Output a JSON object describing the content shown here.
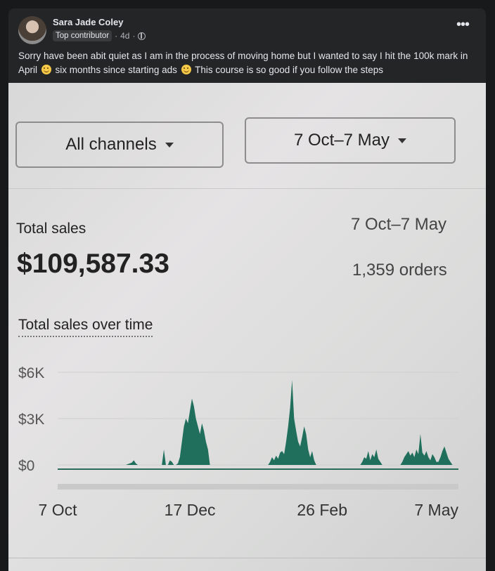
{
  "post": {
    "author": "Sara Jade Coley",
    "badge": "Top contributor",
    "time": "4d",
    "separator": "·",
    "more_icon": "more-icon",
    "text_parts": [
      "Sorry have been abit quiet as I am in the process of moving home but I wanted to say I hit the 100k mark in April",
      "six months since starting ads",
      "This course is so good if you follow the steps"
    ]
  },
  "photo": {
    "channel_filter": "All channels",
    "date_filter": "7 Oct–7 May",
    "total_sales_label": "Total sales",
    "date_range": "7 Oct–7 May",
    "total_sales_value": "$109,587.33",
    "orders": "1,359 orders",
    "chart_title": "Total sales over time"
  },
  "chart_data": {
    "type": "area",
    "title": "Total sales over time",
    "x_labels": [
      "7 Oct",
      "17 Dec",
      "26 Feb",
      "7 May"
    ],
    "y_ticks": [
      "$6K",
      "$3K",
      "$0"
    ],
    "ylim": [
      0,
      6000
    ],
    "color": "#1f6f5c",
    "y": [
      0,
      0,
      0,
      0,
      0,
      0,
      0,
      0,
      0,
      0,
      0,
      0,
      0,
      0,
      0,
      0,
      0,
      0,
      0,
      0,
      0,
      0,
      0,
      0,
      0,
      0,
      0,
      0,
      0,
      0,
      0,
      0,
      0,
      0,
      0,
      50,
      100,
      150,
      300,
      100,
      0,
      0,
      0,
      0,
      0,
      0,
      0,
      0,
      0,
      0,
      0,
      0,
      0,
      1000,
      0,
      0,
      300,
      200,
      0,
      0,
      100,
      500,
      1500,
      2500,
      3000,
      2700,
      3500,
      4300,
      3800,
      3000,
      2500,
      2000,
      2700,
      2200,
      1500,
      1000,
      0,
      0,
      0,
      0,
      0,
      0,
      0,
      0,
      0,
      0,
      0,
      0,
      0,
      0,
      0,
      0,
      0,
      0,
      0,
      0,
      0,
      0,
      0,
      0,
      0,
      0,
      0,
      0,
      0,
      0,
      200,
      500,
      300,
      600,
      400,
      800,
      900,
      700,
      1500,
      2500,
      3700,
      5500,
      3000,
      2200,
      1500,
      1200,
      1800,
      2500,
      2000,
      1000,
      500,
      900,
      300,
      0,
      0,
      0,
      0,
      0,
      0,
      0,
      0,
      0,
      0,
      0,
      0,
      0,
      0,
      0,
      0,
      0,
      0,
      0,
      0,
      0,
      0,
      0,
      200,
      500,
      400,
      900,
      300,
      700,
      500,
      1000,
      400,
      200,
      0,
      0,
      0,
      0,
      0,
      0,
      0,
      0,
      0,
      0,
      200,
      500,
      700,
      900,
      600,
      800,
      500,
      1000,
      700,
      2000,
      800,
      600,
      900,
      500,
      300,
      700,
      500,
      200,
      200,
      500,
      900,
      1200,
      800,
      400,
      200,
      0,
      0,
      0,
      0
    ]
  }
}
